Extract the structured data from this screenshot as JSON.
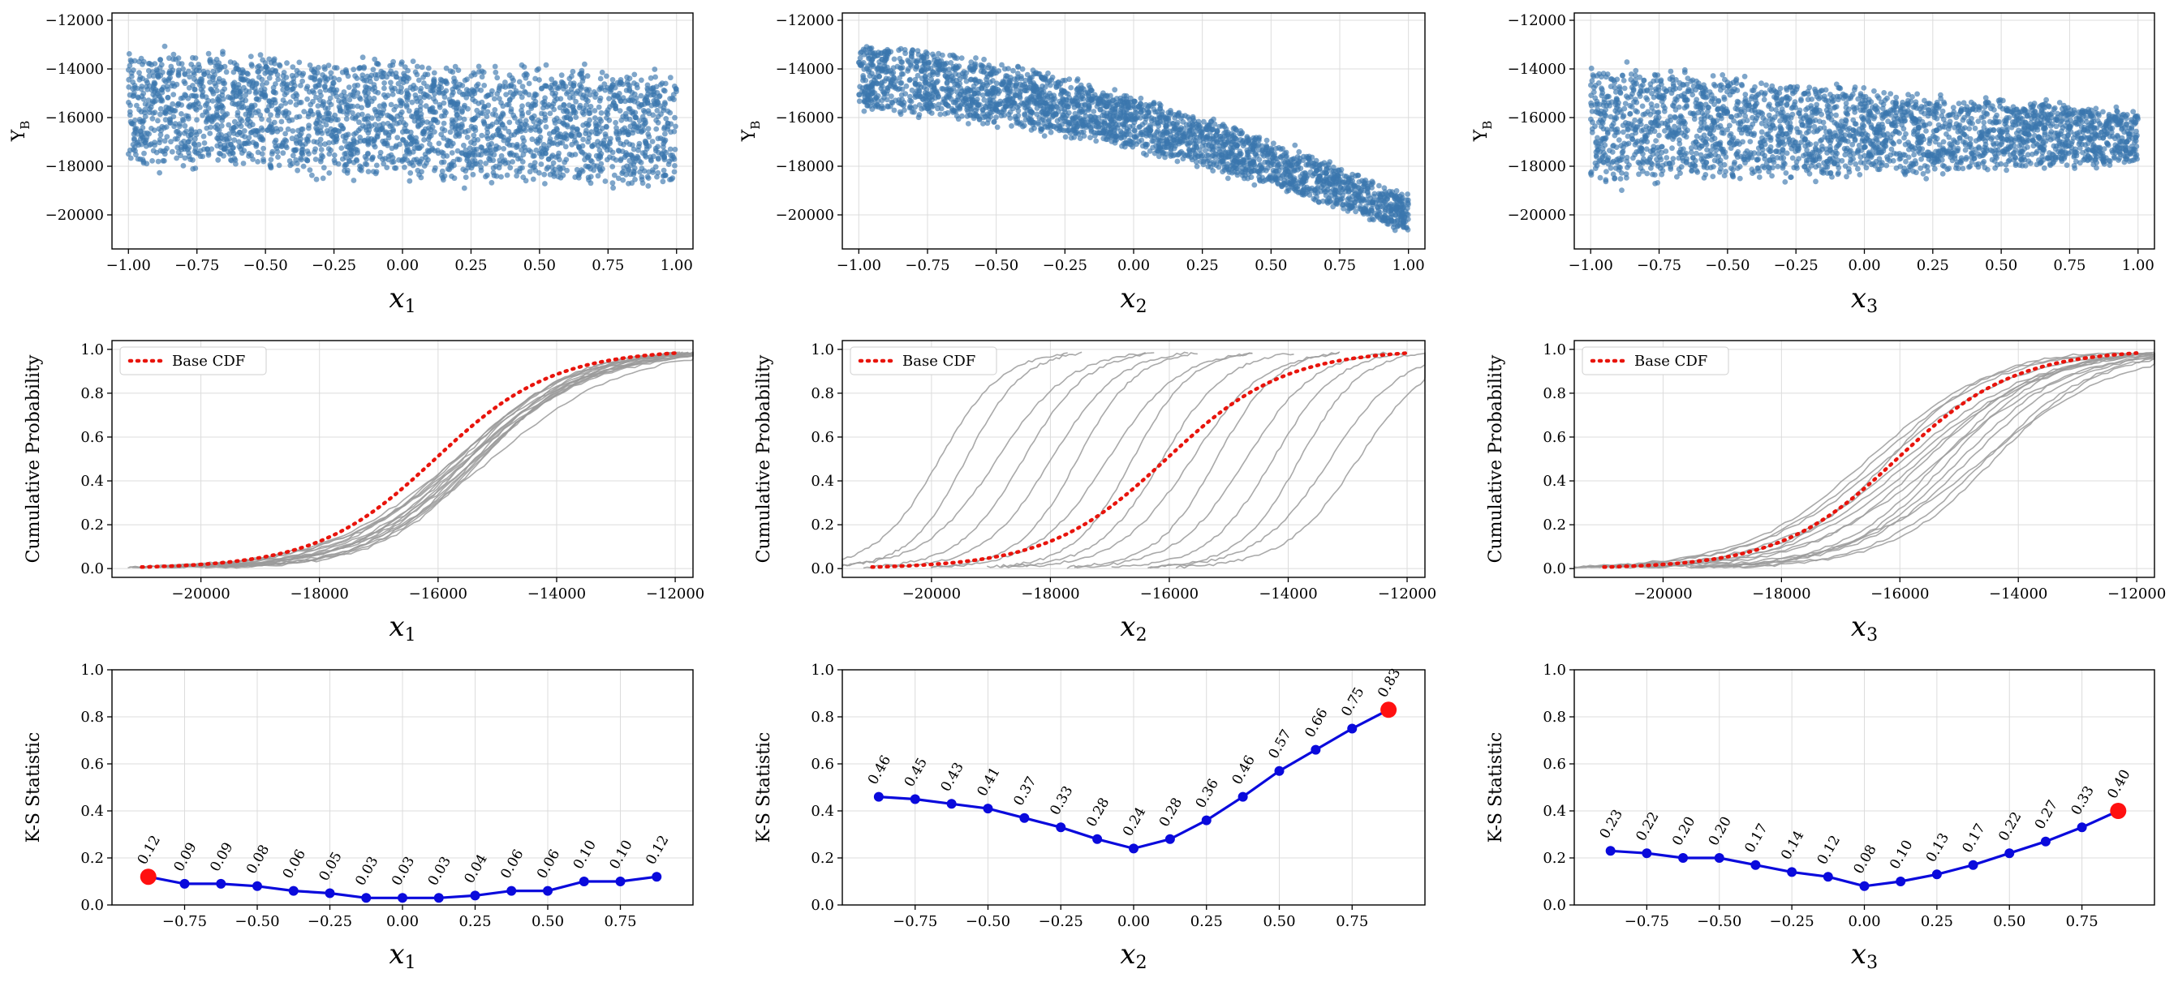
{
  "colors": {
    "scatter": "#3b76ad",
    "ks_line": "#0a0adc",
    "ks_max": "#ff1010",
    "base_cdf": "#e8140c",
    "cond_cdf": "#9a9a9a"
  },
  "chart_data": [
    {
      "id": "scatter-x1",
      "type": "scatter",
      "row": 0,
      "col": 0,
      "shape": "flat",
      "xlabel": "x",
      "xsub": "1",
      "ylabel": "Y",
      "ysub": "B",
      "xlim": [
        -1.06,
        1.06
      ],
      "ylim": [
        -21400,
        -11700
      ],
      "xticks": [
        -1.0,
        -0.75,
        -0.5,
        -0.25,
        0.0,
        0.25,
        0.5,
        0.75,
        1.0
      ],
      "xticklabels": [
        "−1.00",
        "−0.75",
        "−0.50",
        "−0.25",
        "0.00",
        "0.25",
        "0.50",
        "0.75",
        "1.00"
      ],
      "yticks": [
        -20000,
        -18000,
        -16000,
        -14000,
        -12000
      ],
      "yticklabels": [
        "−20000",
        "−18000",
        "−16000",
        "−14000",
        "−12000"
      ],
      "y_mean_at_x_minus1": -15600,
      "y_mean_at_x_plus1": -16500,
      "y_spread": 2100
    },
    {
      "id": "scatter-x2",
      "type": "scatter",
      "row": 0,
      "col": 1,
      "shape": "curved",
      "xlabel": "x",
      "xsub": "2",
      "ylabel": "Y",
      "ysub": "B",
      "xlim": [
        -1.06,
        1.06
      ],
      "ylim": [
        -21400,
        -11700
      ],
      "xticks": [
        -1.0,
        -0.75,
        -0.5,
        -0.25,
        0.0,
        0.25,
        0.5,
        0.75,
        1.0
      ],
      "xticklabels": [
        "−1.00",
        "−0.75",
        "−0.50",
        "−0.25",
        "0.00",
        "0.25",
        "0.50",
        "0.75",
        "1.00"
      ],
      "yticks": [
        -20000,
        -18000,
        -16000,
        -14000,
        -12000
      ],
      "yticklabels": [
        "−20000",
        "−18000",
        "−16000",
        "−14000",
        "−12000"
      ],
      "y_mean_at_x_minus1": -14300,
      "y_mean_at_x_plus1": -20000,
      "y_spread": 1300
    },
    {
      "id": "scatter-x3",
      "type": "scatter",
      "row": 0,
      "col": 2,
      "shape": "wedge",
      "xlabel": "x",
      "xsub": "3",
      "ylabel": "Y",
      "ysub": "B",
      "xlim": [
        -1.06,
        1.06
      ],
      "ylim": [
        -21400,
        -11700
      ],
      "xticks": [
        -1.0,
        -0.75,
        -0.5,
        -0.25,
        0.0,
        0.25,
        0.5,
        0.75,
        1.0
      ],
      "xticklabels": [
        "−1.00",
        "−0.75",
        "−0.50",
        "−0.25",
        "0.00",
        "0.25",
        "0.50",
        "0.75",
        "1.00"
      ],
      "yticks": [
        -20000,
        -18000,
        -16000,
        -14000,
        -12000
      ],
      "yticklabels": [
        "−20000",
        "−18000",
        "−16000",
        "−14000",
        "−12000"
      ],
      "y_mean_at_x_minus1": -16300,
      "y_mean_at_x_plus1": -16800,
      "y_spread": 2200
    },
    {
      "id": "cdf-x1",
      "type": "line",
      "row": 1,
      "col": 0,
      "xlabel": "x",
      "xsub": "1",
      "ylabel": "Cumulative Probability",
      "legend": "Base CDF",
      "legend_position": "upper-left",
      "xlim": [
        -21500,
        -11700
      ],
      "ylim": [
        -0.04,
        1.04
      ],
      "xticks": [
        -20000,
        -18000,
        -16000,
        -14000,
        -12000
      ],
      "xticklabels": [
        "−20000",
        "−18000",
        "−16000",
        "−14000",
        "−12000"
      ],
      "yticks": [
        0.0,
        0.2,
        0.4,
        0.6,
        0.8,
        1.0
      ],
      "yticklabels": [
        "0.0",
        "0.2",
        "0.4",
        "0.6",
        "0.8",
        "1.0"
      ],
      "base_range": [
        -21000,
        -12000
      ],
      "conditional_curves": 16,
      "conditional_shift_range": [
        -300,
        300
      ]
    },
    {
      "id": "cdf-x2",
      "type": "line",
      "row": 1,
      "col": 1,
      "xlabel": "x",
      "xsub": "2",
      "ylabel": "Cumulative Probability",
      "legend": "Base CDF",
      "legend_position": "upper-left",
      "xlim": [
        -21500,
        -11700
      ],
      "ylim": [
        -0.04,
        1.04
      ],
      "xticks": [
        -20000,
        -18000,
        -16000,
        -14000,
        -12000
      ],
      "xticklabels": [
        "−20000",
        "−18000",
        "−16000",
        "−14000",
        "−12000"
      ],
      "yticks": [
        0.0,
        0.2,
        0.4,
        0.6,
        0.8,
        1.0
      ],
      "yticklabels": [
        "0.0",
        "0.2",
        "0.4",
        "0.6",
        "0.8",
        "1.0"
      ],
      "base_range": [
        -21000,
        -12000
      ],
      "conditional_curves": 16,
      "conditional_shift_range": [
        -4200,
        2800
      ]
    },
    {
      "id": "cdf-x3",
      "type": "line",
      "row": 1,
      "col": 2,
      "xlabel": "x",
      "xsub": "3",
      "ylabel": "Cumulative Probability",
      "legend": "Base CDF",
      "legend_position": "upper-left",
      "xlim": [
        -21500,
        -11700
      ],
      "ylim": [
        -0.04,
        1.04
      ],
      "xticks": [
        -20000,
        -18000,
        -16000,
        -14000,
        -12000
      ],
      "xticklabels": [
        "−20000",
        "−18000",
        "−16000",
        "−14000",
        "−12000"
      ],
      "yticks": [
        0.0,
        0.2,
        0.4,
        0.6,
        0.8,
        1.0
      ],
      "yticklabels": [
        "0.0",
        "0.2",
        "0.4",
        "0.6",
        "0.8",
        "1.0"
      ],
      "base_range": [
        -21000,
        -12000
      ],
      "conditional_curves": 16,
      "conditional_shift_range": [
        -1100,
        1100
      ]
    },
    {
      "id": "ks-x1",
      "type": "line",
      "row": 2,
      "col": 0,
      "xlabel": "x",
      "xsub": "1",
      "ylabel": "K-S Statistic",
      "xlim": [
        -1.0,
        1.0
      ],
      "ylim": [
        0.0,
        1.0
      ],
      "xticks": [
        -0.75,
        -0.5,
        -0.25,
        0.0,
        0.25,
        0.5,
        0.75
      ],
      "xticklabels": [
        "−0.75",
        "−0.50",
        "−0.25",
        "0.00",
        "0.25",
        "0.50",
        "0.75"
      ],
      "yticks": [
        0.0,
        0.2,
        0.4,
        0.6,
        0.8,
        1.0
      ],
      "yticklabels": [
        "0.0",
        "0.2",
        "0.4",
        "0.6",
        "0.8",
        "1.0"
      ],
      "x": [
        -0.875,
        -0.75,
        -0.625,
        -0.5,
        -0.375,
        -0.25,
        -0.125,
        0.0,
        0.125,
        0.25,
        0.375,
        0.5,
        0.625,
        0.75,
        0.875
      ],
      "values": [
        0.12,
        0.09,
        0.09,
        0.08,
        0.06,
        0.05,
        0.03,
        0.03,
        0.03,
        0.04,
        0.06,
        0.06,
        0.1,
        0.1,
        0.12
      ],
      "labels": [
        "0.12",
        "0.09",
        "0.09",
        "0.08",
        "0.06",
        "0.05",
        "0.03",
        "0.03",
        "0.03",
        "0.04",
        "0.06",
        "0.06",
        "0.10",
        "0.10",
        "0.12"
      ],
      "max_index": 0
    },
    {
      "id": "ks-x2",
      "type": "line",
      "row": 2,
      "col": 1,
      "xlabel": "x",
      "xsub": "2",
      "ylabel": "K-S Statistic",
      "xlim": [
        -1.0,
        1.0
      ],
      "ylim": [
        0.0,
        1.0
      ],
      "xticks": [
        -0.75,
        -0.5,
        -0.25,
        0.0,
        0.25,
        0.5,
        0.75
      ],
      "xticklabels": [
        "−0.75",
        "−0.50",
        "−0.25",
        "0.00",
        "0.25",
        "0.50",
        "0.75"
      ],
      "yticks": [
        0.0,
        0.2,
        0.4,
        0.6,
        0.8,
        1.0
      ],
      "yticklabels": [
        "0.0",
        "0.2",
        "0.4",
        "0.6",
        "0.8",
        "1.0"
      ],
      "x": [
        -0.875,
        -0.75,
        -0.625,
        -0.5,
        -0.375,
        -0.25,
        -0.125,
        0.0,
        0.125,
        0.25,
        0.375,
        0.5,
        0.625,
        0.75,
        0.875
      ],
      "values": [
        0.46,
        0.45,
        0.43,
        0.41,
        0.37,
        0.33,
        0.28,
        0.24,
        0.28,
        0.36,
        0.46,
        0.57,
        0.66,
        0.75,
        0.83
      ],
      "labels": [
        "0.46",
        "0.45",
        "0.43",
        "0.41",
        "0.37",
        "0.33",
        "0.28",
        "0.24",
        "0.28",
        "0.36",
        "0.46",
        "0.57",
        "0.66",
        "0.75",
        "0.83"
      ],
      "max_index": 14
    },
    {
      "id": "ks-x3",
      "type": "line",
      "row": 2,
      "col": 2,
      "xlabel": "x",
      "xsub": "3",
      "ylabel": "K-S Statistic",
      "xlim": [
        -1.0,
        1.0
      ],
      "ylim": [
        0.0,
        1.0
      ],
      "xticks": [
        -0.75,
        -0.5,
        -0.25,
        0.0,
        0.25,
        0.5,
        0.75
      ],
      "xticklabels": [
        "−0.75",
        "−0.50",
        "−0.25",
        "0.00",
        "0.25",
        "0.50",
        "0.75"
      ],
      "yticks": [
        0.0,
        0.2,
        0.4,
        0.6,
        0.8,
        1.0
      ],
      "yticklabels": [
        "0.0",
        "0.2",
        "0.4",
        "0.6",
        "0.8",
        "1.0"
      ],
      "x": [
        -0.875,
        -0.75,
        -0.625,
        -0.5,
        -0.375,
        -0.25,
        -0.125,
        0.0,
        0.125,
        0.25,
        0.375,
        0.5,
        0.625,
        0.75,
        0.875
      ],
      "values": [
        0.23,
        0.22,
        0.2,
        0.2,
        0.17,
        0.14,
        0.12,
        0.08,
        0.1,
        0.13,
        0.17,
        0.22,
        0.27,
        0.33,
        0.4
      ],
      "labels": [
        "0.23",
        "0.22",
        "0.20",
        "0.20",
        "0.17",
        "0.14",
        "0.12",
        "0.08",
        "0.10",
        "0.13",
        "0.17",
        "0.22",
        "0.27",
        "0.33",
        "0.40"
      ],
      "max_index": 14
    }
  ]
}
